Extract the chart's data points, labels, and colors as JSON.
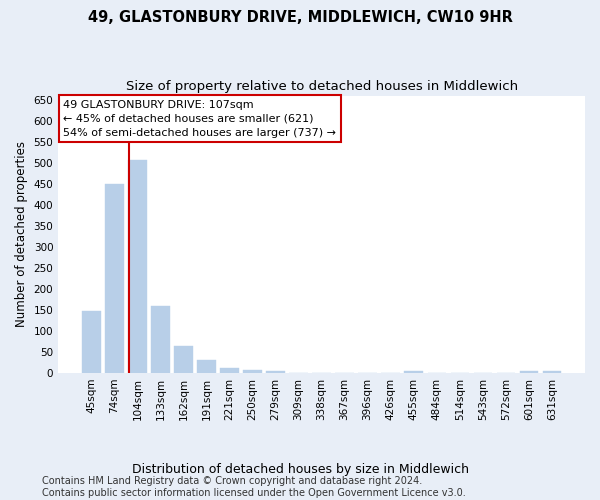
{
  "title": "49, GLASTONBURY DRIVE, MIDDLEWICH, CW10 9HR",
  "subtitle": "Size of property relative to detached houses in Middlewich",
  "xlabel": "Distribution of detached houses by size in Middlewich",
  "ylabel": "Number of detached properties",
  "footer": "Contains HM Land Registry data © Crown copyright and database right 2024.\nContains public sector information licensed under the Open Government Licence v3.0.",
  "categories": [
    "45sqm",
    "74sqm",
    "104sqm",
    "133sqm",
    "162sqm",
    "191sqm",
    "221sqm",
    "250sqm",
    "279sqm",
    "309sqm",
    "338sqm",
    "367sqm",
    "396sqm",
    "426sqm",
    "455sqm",
    "484sqm",
    "514sqm",
    "543sqm",
    "572sqm",
    "601sqm",
    "631sqm"
  ],
  "values": [
    148,
    450,
    507,
    159,
    65,
    30,
    13,
    8,
    4,
    0,
    0,
    0,
    0,
    0,
    5,
    0,
    0,
    0,
    0,
    5,
    5
  ],
  "bar_color": "#b8cfe8",
  "bar_edge_color": "#b8cfe8",
  "bar_width": 0.8,
  "vline_x_index": 1.62,
  "vline_color": "#cc0000",
  "annotation_text": "49 GLASTONBURY DRIVE: 107sqm\n← 45% of detached houses are smaller (621)\n54% of semi-detached houses are larger (737) →",
  "annotation_box_color": "#ffffff",
  "annotation_box_edge": "#cc0000",
  "ylim": [
    0,
    660
  ],
  "yticks": [
    0,
    50,
    100,
    150,
    200,
    250,
    300,
    350,
    400,
    450,
    500,
    550,
    600,
    650
  ],
  "fig_bg_color": "#e8eef7",
  "plot_bg_color": "#ffffff",
  "grid_color": "#ffffff",
  "title_fontsize": 10.5,
  "subtitle_fontsize": 9.5,
  "xlabel_fontsize": 9,
  "ylabel_fontsize": 8.5,
  "tick_fontsize": 7.5,
  "annot_fontsize": 8,
  "footer_fontsize": 7
}
